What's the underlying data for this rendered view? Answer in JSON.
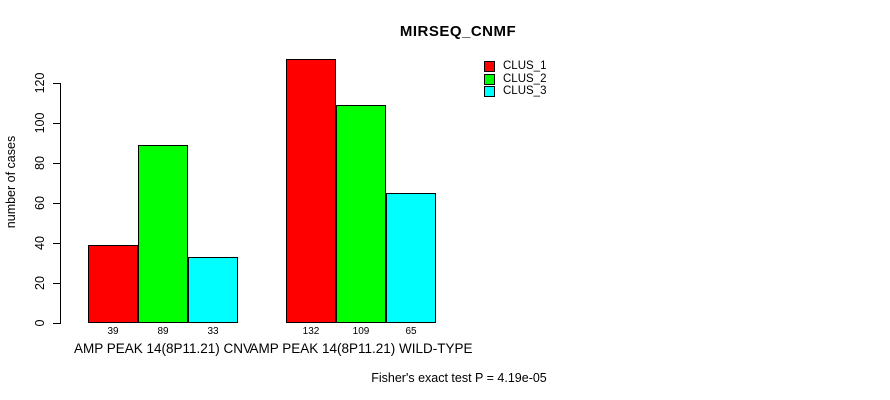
{
  "chart": {
    "title": "MIRSEQ_CNMF",
    "ylabel": "number of cases",
    "footer": "Fisher's exact test P = 4.19e-05"
  },
  "chart_data": {
    "type": "bar",
    "title": "MIRSEQ_CNMF",
    "xlabel": "",
    "ylabel": "number of cases",
    "categories": [
      "AMP PEAK 14(8P11.21) CNV",
      "AMP PEAK 14(8P11.21) WILD-TYPE"
    ],
    "series": [
      {
        "name": "CLUS_1",
        "color": "#ff0000",
        "values": [
          39,
          132
        ]
      },
      {
        "name": "CLUS_2",
        "color": "#00ff00",
        "values": [
          89,
          109
        ]
      },
      {
        "name": "CLUS_3",
        "color": "#00ffff",
        "values": [
          33,
          65
        ]
      }
    ],
    "bar_value_labels": [
      [
        "39",
        "89",
        "33"
      ],
      [
        "132",
        "109",
        "65"
      ]
    ],
    "yticks": [
      0,
      20,
      40,
      60,
      80,
      100,
      120
    ],
    "ylim": [
      0,
      120
    ],
    "grid": false,
    "legend_position": "top-right",
    "annotation": "Fisher's exact test P = 4.19e-05"
  }
}
